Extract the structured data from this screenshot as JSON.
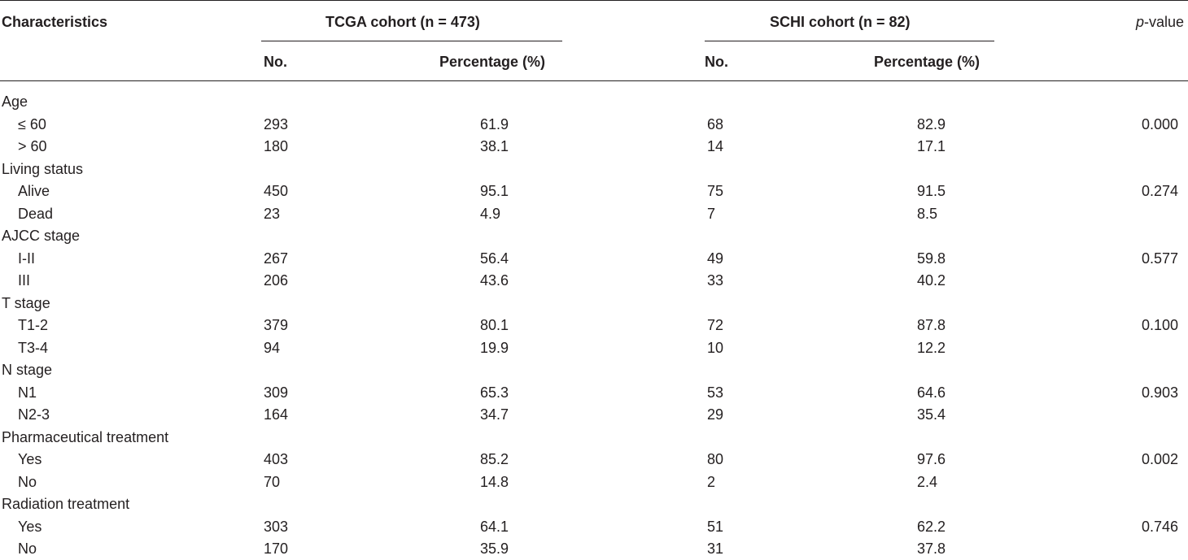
{
  "header": {
    "characteristics": "Characteristics",
    "tcga_cohort": "TCGA cohort (n = 473)",
    "schi_cohort": "SCHI cohort (n = 82)",
    "p_value_italic": "p",
    "p_value_rest": "-value",
    "no_label": "No.",
    "percentage_label": "Percentage (%)"
  },
  "rows": [
    {
      "type": "group",
      "label": "Age"
    },
    {
      "type": "item",
      "label": "≤ 60",
      "tcga_no": "293",
      "tcga_pct": "61.9",
      "schi_no": "68",
      "schi_pct": "82.9",
      "p": "0.000"
    },
    {
      "type": "item",
      "label": "> 60",
      "tcga_no": "180",
      "tcga_pct": "38.1",
      "schi_no": "14",
      "schi_pct": "17.1",
      "p": ""
    },
    {
      "type": "group",
      "label": "Living status"
    },
    {
      "type": "item",
      "label": "Alive",
      "tcga_no": "450",
      "tcga_pct": "95.1",
      "schi_no": "75",
      "schi_pct": "91.5",
      "p": "0.274"
    },
    {
      "type": "item",
      "label": "Dead",
      "tcga_no": "23",
      "tcga_pct": "4.9",
      "schi_no": "7",
      "schi_pct": "8.5",
      "p": ""
    },
    {
      "type": "group",
      "label": "AJCC stage"
    },
    {
      "type": "item",
      "label": "I-II",
      "tcga_no": "267",
      "tcga_pct": "56.4",
      "schi_no": "49",
      "schi_pct": "59.8",
      "p": "0.577"
    },
    {
      "type": "item",
      "label": "III",
      "tcga_no": "206",
      "tcga_pct": "43.6",
      "schi_no": "33",
      "schi_pct": "40.2",
      "p": ""
    },
    {
      "type": "group",
      "label": "T stage"
    },
    {
      "type": "item",
      "label": "T1-2",
      "tcga_no": "379",
      "tcga_pct": "80.1",
      "schi_no": "72",
      "schi_pct": "87.8",
      "p": "0.100"
    },
    {
      "type": "item",
      "label": "T3-4",
      "tcga_no": "94",
      "tcga_pct": "19.9",
      "schi_no": "10",
      "schi_pct": "12.2",
      "p": ""
    },
    {
      "type": "group",
      "label": "N stage"
    },
    {
      "type": "item",
      "label": "N1",
      "tcga_no": "309",
      "tcga_pct": "65.3",
      "schi_no": "53",
      "schi_pct": "64.6",
      "p": "0.903"
    },
    {
      "type": "item",
      "label": "N2-3",
      "tcga_no": "164",
      "tcga_pct": "34.7",
      "schi_no": "29",
      "schi_pct": "35.4",
      "p": ""
    },
    {
      "type": "group",
      "label": "Pharmaceutical treatment"
    },
    {
      "type": "item",
      "label": "Yes",
      "tcga_no": "403",
      "tcga_pct": "85.2",
      "schi_no": "80",
      "schi_pct": "97.6",
      "p": "0.002"
    },
    {
      "type": "item",
      "label": "No",
      "tcga_no": "70",
      "tcga_pct": "14.8",
      "schi_no": "2",
      "schi_pct": "2.4",
      "p": ""
    },
    {
      "type": "group",
      "label": "Radiation treatment"
    },
    {
      "type": "item",
      "label": "Yes",
      "tcga_no": "303",
      "tcga_pct": "64.1",
      "schi_no": "51",
      "schi_pct": "62.2",
      "p": "0.746"
    },
    {
      "type": "item",
      "label": "No",
      "tcga_no": "170",
      "tcga_pct": "35.9",
      "schi_no": "31",
      "schi_pct": "37.8",
      "p": ""
    }
  ]
}
